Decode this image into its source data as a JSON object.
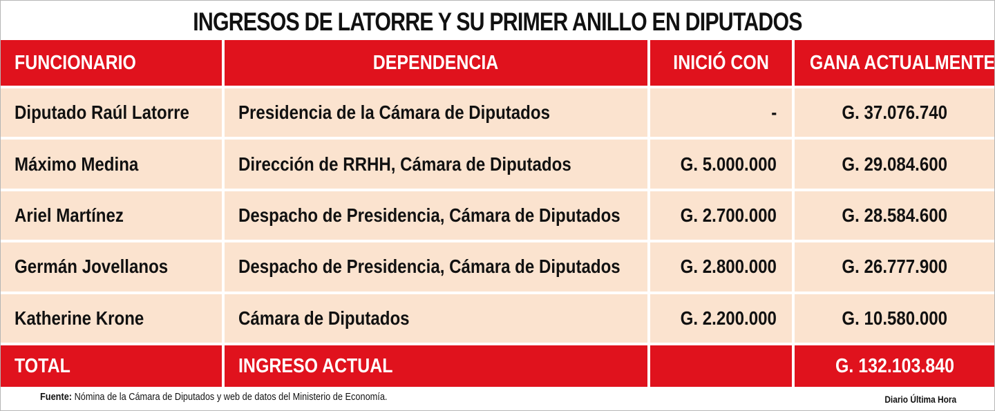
{
  "title": "INGRESOS DE LATORRE Y SU PRIMER ANILLO  EN DIPUTADOS",
  "table": {
    "headers": [
      "FUNCIONARIO",
      "DEPENDENCIA",
      "INICIÓ CON",
      "GANA ACTUALMENTE"
    ],
    "rows": [
      [
        "Diputado Raúl Latorre",
        "Presidencia de la Cámara de  Diputados",
        "-",
        "G. 37.076.740"
      ],
      [
        "Máximo Medina",
        "Dirección de RRHH, Cámara de Diputados",
        "G. 5.000.000",
        "G. 29.084.600"
      ],
      [
        "Ariel Martínez",
        "Despacho de Presidencia, Cámara de Diputados",
        "G. 2.700.000",
        "G. 28.584.600"
      ],
      [
        "Germán Jovellanos",
        "Despacho de Presidencia, Cámara de Diputados",
        "G. 2.800.000",
        "G. 26.777.900"
      ],
      [
        "Katherine Krone",
        "Cámara de Diputados",
        "G. 2.200.000",
        "G. 10.580.000"
      ]
    ],
    "total": [
      "TOTAL",
      "INGRESO ACTUAL",
      "",
      "G. 132.103.840"
    ]
  },
  "footer": {
    "source_label": "Fuente:",
    "source_text": " Nómina de la Cámara de Diputados y web de datos del Ministerio de Economía.",
    "credit": "Diario Última Hora"
  },
  "colors": {
    "header_red": "#e0121d",
    "row_beige": "#fbe3cf"
  }
}
